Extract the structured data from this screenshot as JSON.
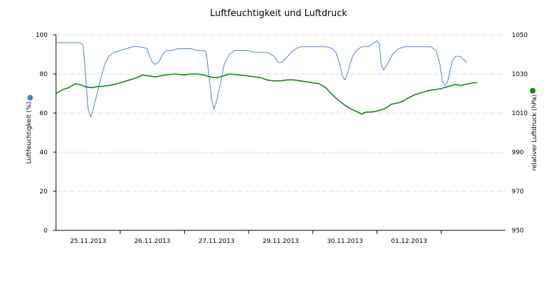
{
  "chart_data": {
    "type": "line",
    "title": "Luftfeuchtigkeit und Luftdruck",
    "y_left": {
      "label": "Luftfeuchtigkeit (%)",
      "range": [
        0,
        100
      ],
      "ticks": [
        0,
        20,
        40,
        60,
        80,
        100
      ],
      "marker_color": "#4a7de0"
    },
    "y_right": {
      "label": "relativer Luftdruck (hPa)",
      "range": [
        950,
        1050
      ],
      "ticks": [
        950,
        970,
        990,
        1010,
        1030,
        1050
      ],
      "marker_color": "#0d8a0d"
    },
    "x_labels": [
      {
        "label": "25.11.2013",
        "at": 0.5
      },
      {
        "label": "26.11.2013",
        "at": 1.5
      },
      {
        "label": "27.11.2013",
        "at": 2.5
      },
      {
        "label": "29.11.2013",
        "at": 3.5
      },
      {
        "label": "30.11.2013",
        "at": 4.5
      },
      {
        "label": "01.12.2013",
        "at": 5.5
      }
    ],
    "x_range": [
      0,
      7
    ],
    "grid": "horizontal dashed",
    "series": [
      {
        "axis": "left",
        "color": "#6b8fe3",
        "points": [
          [
            0.0,
            96
          ],
          [
            0.1,
            96
          ],
          [
            0.25,
            96
          ],
          [
            0.38,
            96
          ],
          [
            0.42,
            95
          ],
          [
            0.44,
            88
          ],
          [
            0.47,
            75
          ],
          [
            0.5,
            62
          ],
          [
            0.54,
            58
          ],
          [
            0.58,
            62
          ],
          [
            0.64,
            70
          ],
          [
            0.7,
            78
          ],
          [
            0.76,
            85
          ],
          [
            0.82,
            89
          ],
          [
            0.9,
            91
          ],
          [
            1.0,
            92
          ],
          [
            1.1,
            93
          ],
          [
            1.2,
            94
          ],
          [
            1.3,
            94
          ],
          [
            1.42,
            93
          ],
          [
            1.46,
            89
          ],
          [
            1.5,
            86
          ],
          [
            1.54,
            85
          ],
          [
            1.6,
            86
          ],
          [
            1.66,
            90
          ],
          [
            1.72,
            92
          ],
          [
            1.8,
            92
          ],
          [
            1.9,
            93
          ],
          [
            2.0,
            93
          ],
          [
            2.1,
            93
          ],
          [
            2.2,
            92
          ],
          [
            2.3,
            92
          ],
          [
            2.34,
            91
          ],
          [
            2.38,
            80
          ],
          [
            2.42,
            68
          ],
          [
            2.46,
            62
          ],
          [
            2.5,
            66
          ],
          [
            2.56,
            75
          ],
          [
            2.62,
            85
          ],
          [
            2.7,
            90
          ],
          [
            2.78,
            92
          ],
          [
            2.9,
            92
          ],
          [
            3.0,
            92
          ],
          [
            3.1,
            91
          ],
          [
            3.2,
            91
          ],
          [
            3.3,
            91
          ],
          [
            3.4,
            89
          ],
          [
            3.46,
            86
          ],
          [
            3.52,
            86
          ],
          [
            3.58,
            88
          ],
          [
            3.66,
            91
          ],
          [
            3.74,
            93
          ],
          [
            3.82,
            94
          ],
          [
            3.9,
            94
          ],
          [
            4.0,
            94
          ],
          [
            4.1,
            94
          ],
          [
            4.2,
            94
          ],
          [
            4.3,
            93
          ],
          [
            4.36,
            91
          ],
          [
            4.42,
            85
          ],
          [
            4.46,
            79
          ],
          [
            4.5,
            77
          ],
          [
            4.54,
            80
          ],
          [
            4.58,
            85
          ],
          [
            4.62,
            89
          ],
          [
            4.68,
            92
          ],
          [
            4.76,
            94
          ],
          [
            4.86,
            94
          ],
          [
            4.96,
            96
          ],
          [
            5.0,
            97
          ],
          [
            5.04,
            95
          ],
          [
            5.06,
            86
          ],
          [
            5.1,
            82
          ],
          [
            5.16,
            85
          ],
          [
            5.24,
            90
          ],
          [
            5.34,
            93
          ],
          [
            5.44,
            94
          ],
          [
            5.54,
            94
          ],
          [
            5.64,
            94
          ],
          [
            5.74,
            94
          ],
          [
            5.84,
            94
          ],
          [
            5.92,
            92
          ],
          [
            5.98,
            85
          ],
          [
            6.02,
            76
          ],
          [
            6.06,
            74
          ],
          [
            6.1,
            76
          ],
          [
            6.14,
            82
          ],
          [
            6.18,
            87
          ],
          [
            6.22,
            89
          ],
          [
            6.3,
            89
          ],
          [
            6.36,
            87
          ],
          [
            6.4,
            86
          ]
        ]
      },
      {
        "axis": "right",
        "color": "#0d8a0d",
        "points": [
          [
            0.0,
            1020
          ],
          [
            0.1,
            1022
          ],
          [
            0.2,
            1023
          ],
          [
            0.3,
            1025
          ],
          [
            0.38,
            1024.5
          ],
          [
            0.45,
            1023.5
          ],
          [
            0.55,
            1023
          ],
          [
            0.65,
            1023.5
          ],
          [
            0.8,
            1024
          ],
          [
            0.95,
            1025
          ],
          [
            1.1,
            1026.5
          ],
          [
            1.25,
            1028
          ],
          [
            1.35,
            1029.5
          ],
          [
            1.45,
            1029
          ],
          [
            1.55,
            1028.5
          ],
          [
            1.7,
            1029.5
          ],
          [
            1.85,
            1030
          ],
          [
            2.0,
            1029.5
          ],
          [
            2.1,
            1030
          ],
          [
            2.2,
            1030
          ],
          [
            2.3,
            1029.5
          ],
          [
            2.4,
            1028.5
          ],
          [
            2.5,
            1028
          ],
          [
            2.6,
            1029
          ],
          [
            2.7,
            1030
          ],
          [
            2.85,
            1029.5
          ],
          [
            3.0,
            1029
          ],
          [
            3.1,
            1028.5
          ],
          [
            3.2,
            1028
          ],
          [
            3.28,
            1027
          ],
          [
            3.38,
            1026.5
          ],
          [
            3.5,
            1026.5
          ],
          [
            3.6,
            1027
          ],
          [
            3.7,
            1027
          ],
          [
            3.8,
            1026.5
          ],
          [
            3.9,
            1026
          ],
          [
            4.0,
            1025.5
          ],
          [
            4.1,
            1025
          ],
          [
            4.2,
            1023
          ],
          [
            4.3,
            1019.5
          ],
          [
            4.4,
            1016.5
          ],
          [
            4.5,
            1014
          ],
          [
            4.6,
            1012
          ],
          [
            4.7,
            1010.5
          ],
          [
            4.76,
            1009.5
          ],
          [
            4.82,
            1010.5
          ],
          [
            4.9,
            1010.5
          ],
          [
            5.0,
            1011
          ],
          [
            5.1,
            1012
          ],
          [
            5.16,
            1013
          ],
          [
            5.22,
            1014.5
          ],
          [
            5.3,
            1015
          ],
          [
            5.4,
            1016
          ],
          [
            5.5,
            1018
          ],
          [
            5.6,
            1019.5
          ],
          [
            5.7,
            1020.5
          ],
          [
            5.8,
            1021.5
          ],
          [
            5.9,
            1022
          ],
          [
            6.0,
            1022.5
          ],
          [
            6.1,
            1023.5
          ],
          [
            6.2,
            1024.5
          ],
          [
            6.26,
            1024.5
          ],
          [
            6.3,
            1024
          ],
          [
            6.36,
            1024.5
          ],
          [
            6.42,
            1025
          ],
          [
            6.5,
            1025.5
          ],
          [
            6.56,
            1025.5
          ]
        ]
      }
    ]
  }
}
